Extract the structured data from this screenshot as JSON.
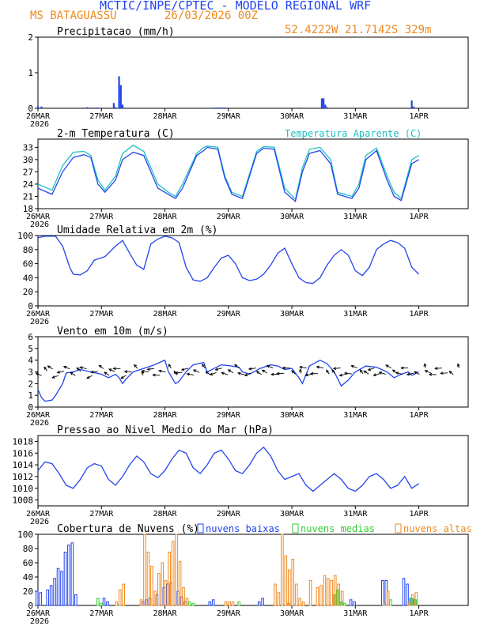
{
  "header": {
    "title": "MCTIC/INPE/CPTEC - MODELO REGIONAL WRF",
    "location": "MS BATAGUASSU",
    "run": "26/03/2026 00Z",
    "coords": "52.4222W 21.7142S 329m"
  },
  "colors": {
    "blue": "#2244ee",
    "cyan": "#20c0c0",
    "orange": "#f08a20",
    "green": "#33cc33",
    "black": "#000000"
  },
  "chart_data": [
    {
      "id": "precip",
      "type": "bar",
      "title": "Precipitacao (mm/h)",
      "x": [
        0,
        1,
        14,
        15,
        16.5,
        17,
        21.5,
        22,
        23,
        23.5,
        24,
        50,
        51,
        51.5,
        52,
        52.5,
        53,
        74,
        80.5,
        81,
        81.5,
        82,
        106,
        106.5
      ],
      "values": [
        0.05,
        0.05,
        0.03,
        0.02,
        0.02,
        0.02,
        0.15,
        0.03,
        0.9,
        0.65,
        0.1,
        0.02,
        0.02,
        0.02,
        0.02,
        0.02,
        0.02,
        0.02,
        0.28,
        0.28,
        0.1,
        0.03,
        0.22,
        0.05
      ],
      "ylim": [
        0,
        2
      ],
      "yticks": [
        0,
        1,
        2
      ]
    },
    {
      "id": "temp",
      "type": "line",
      "title": "2-m Temperatura (C)",
      "legend": "Temperatura Aparente (C)",
      "x": [
        0,
        4,
        7,
        10,
        13,
        15,
        17,
        19,
        22,
        24,
        27,
        30,
        34,
        37,
        39,
        41,
        45,
        47,
        48,
        51,
        53,
        55,
        58,
        62,
        64,
        67,
        70,
        73,
        75,
        77,
        80,
        83,
        85,
        89,
        91,
        93,
        96,
        99,
        101,
        103,
        106,
        108
      ],
      "series": [
        {
          "name": "2-m Temperatura",
          "values": [
            23,
            21.5,
            27,
            30.5,
            31.2,
            30.5,
            24,
            22,
            25,
            30,
            31.8,
            31,
            23,
            21.5,
            20.5,
            23,
            31,
            32.2,
            33,
            32.5,
            25.5,
            21.5,
            20.5,
            31.5,
            32.8,
            32.5,
            22,
            19.8,
            27,
            31.5,
            32.2,
            29,
            21.5,
            20.5,
            23,
            30,
            32.2,
            25,
            21,
            20,
            29,
            30
          ]
        },
        {
          "name": "Temperatura Aparente",
          "values": [
            24,
            22.5,
            28.5,
            31.8,
            32,
            31,
            25,
            22.5,
            26,
            31.5,
            33.5,
            32,
            24,
            22,
            21,
            24,
            31.5,
            33,
            33.3,
            33,
            26,
            22,
            21,
            32,
            33.2,
            33,
            23,
            20.3,
            28,
            32.5,
            33,
            30,
            22,
            21,
            24,
            31,
            32.8,
            26,
            22,
            20.5,
            30,
            31
          ]
        }
      ],
      "ylim": [
        18,
        35
      ],
      "yticks": [
        18,
        21,
        24,
        27,
        30,
        33
      ]
    },
    {
      "id": "rh",
      "type": "line",
      "title": "Umidade Relativa em 2m (%)",
      "x": [
        0,
        2,
        5,
        7,
        9,
        10,
        12,
        14,
        16,
        19,
        22,
        24,
        26,
        28,
        30,
        32,
        34,
        36,
        38,
        40,
        42,
        44,
        46,
        48,
        50,
        52,
        54,
        56,
        58,
        60,
        62,
        64,
        66,
        68,
        70,
        72,
        74,
        76,
        78,
        80,
        82,
        84,
        86,
        88,
        90,
        92,
        94,
        96,
        98,
        100,
        102,
        104,
        106,
        108
      ],
      "series": [
        {
          "name": "Umidade Relativa",
          "values": [
            97,
            99,
            99,
            85,
            55,
            45,
            44,
            50,
            65,
            70,
            85,
            93,
            75,
            58,
            52,
            88,
            95,
            99,
            97,
            90,
            55,
            37,
            35,
            40,
            55,
            68,
            72,
            60,
            40,
            36,
            38,
            45,
            58,
            75,
            82,
            60,
            40,
            33,
            32,
            40,
            58,
            72,
            80,
            72,
            50,
            43,
            55,
            80,
            88,
            93,
            90,
            82,
            55,
            45
          ]
        }
      ],
      "ylim": [
        0,
        100
      ],
      "yticks": [
        0,
        20,
        40,
        60,
        80,
        100
      ]
    },
    {
      "id": "wind",
      "type": "line",
      "title": "Vento em 10m (m/s)",
      "x": [
        0,
        1,
        2,
        4,
        5,
        7,
        8,
        10,
        12,
        15,
        18,
        20,
        22,
        23,
        24,
        25,
        27,
        30,
        33,
        36,
        37,
        39,
        40,
        42,
        44,
        47,
        48,
        50,
        52,
        55,
        57,
        58,
        60,
        63,
        66,
        68,
        70,
        72,
        74,
        75,
        77,
        80,
        82,
        84,
        86,
        88,
        90,
        93,
        96,
        99,
        101,
        103,
        105,
        106,
        108
      ],
      "series": [
        {
          "name": "Vento",
          "values": [
            1.5,
            0.8,
            0.5,
            0.6,
            1.0,
            2.0,
            2.9,
            3.0,
            3.2,
            3.0,
            2.8,
            2.5,
            2.8,
            2.5,
            2.0,
            2.4,
            3.0,
            3.3,
            3.6,
            4.0,
            3.0,
            2.0,
            2.2,
            3.0,
            3.6,
            3.8,
            3.0,
            3.3,
            3.6,
            3.5,
            3.4,
            3.0,
            2.8,
            3.3,
            3.6,
            3.5,
            3.2,
            3.3,
            2.5,
            2.0,
            3.5,
            4.0,
            3.7,
            3.0,
            1.8,
            2.3,
            3.0,
            3.5,
            3.4,
            3.0,
            2.5,
            2.8,
            3.0,
            2.7,
            3.0
          ]
        }
      ],
      "ylim": [
        0,
        6
      ],
      "yticks": [
        0,
        1,
        2,
        3,
        4,
        5,
        6
      ]
    },
    {
      "id": "press",
      "type": "line",
      "title": "Pressao ao Nivel Medio do Mar (hPa)",
      "x": [
        0,
        2,
        4,
        6,
        8,
        10,
        12,
        14,
        16,
        18,
        20,
        22,
        24,
        26,
        28,
        30,
        32,
        34,
        36,
        38,
        40,
        42,
        44,
        46,
        48,
        50,
        52,
        54,
        56,
        58,
        60,
        62,
        64,
        66,
        68,
        70,
        72,
        74,
        76,
        78,
        80,
        82,
        84,
        86,
        88,
        90,
        92,
        94,
        96,
        98,
        100,
        102,
        104,
        106,
        108
      ],
      "series": [
        {
          "name": "Pressao",
          "values": [
            1013,
            1014.5,
            1014.2,
            1012.5,
            1010.5,
            1010,
            1011.5,
            1013.5,
            1014.2,
            1013.8,
            1011.5,
            1010.5,
            1012,
            1014,
            1015.5,
            1014.5,
            1012.5,
            1011.8,
            1013,
            1015,
            1016.5,
            1016,
            1013.5,
            1012.5,
            1014,
            1016,
            1016.5,
            1015,
            1013,
            1012.5,
            1014,
            1016,
            1017,
            1015.5,
            1013,
            1011.5,
            1012,
            1012.5,
            1010.5,
            1009.5,
            1010.5,
            1011.5,
            1012.5,
            1011.5,
            1010,
            1009.5,
            1010.5,
            1012,
            1012.5,
            1011.5,
            1010,
            1010.5,
            1012,
            1010,
            1010.8
          ]
        }
      ],
      "ylim": [
        1007,
        1019
      ],
      "yticks": [
        1008,
        1010,
        1012,
        1014,
        1016,
        1018
      ]
    },
    {
      "id": "cloud",
      "type": "bar",
      "title": "Cobertura de Nuvens (%)",
      "legend": [
        "nuvens baixas",
        "nuvens medias",
        "nuvens altas"
      ],
      "series": [
        {
          "name": "nuvens baixas",
          "x": [
            0,
            1,
            3,
            4,
            5,
            6,
            7,
            8,
            9,
            10,
            11,
            19,
            20,
            30,
            31,
            32,
            34,
            36,
            37,
            38,
            40,
            41,
            42,
            49,
            50,
            63,
            64,
            89,
            90,
            98,
            99,
            104,
            105,
            106,
            107
          ],
          "values": [
            20,
            18,
            22,
            28,
            38,
            52,
            48,
            75,
            85,
            88,
            15,
            10,
            5,
            5,
            8,
            10,
            15,
            25,
            30,
            32,
            20,
            12,
            5,
            5,
            8,
            5,
            10,
            8,
            5,
            35,
            35,
            38,
            30,
            10,
            8
          ]
        },
        {
          "name": "nuvens medias",
          "x": [
            17,
            18,
            43,
            44,
            57,
            71,
            84,
            85,
            86,
            87,
            100,
            106,
            107
          ],
          "values": [
            10,
            3,
            5,
            3,
            5,
            3,
            15,
            22,
            5,
            3,
            8,
            10,
            8
          ]
        },
        {
          "name": "nuvens altas",
          "x": [
            22,
            23,
            24,
            29,
            30,
            31,
            32,
            33,
            34,
            35,
            36,
            37,
            38,
            39,
            40,
            41,
            42,
            53,
            54,
            55,
            67,
            68,
            69,
            70,
            71,
            72,
            73,
            74,
            75,
            77,
            79,
            80,
            81,
            82,
            83,
            84,
            85,
            86,
            98,
            99,
            105,
            106,
            107
          ],
          "values": [
            5,
            22,
            30,
            8,
            100,
            75,
            55,
            20,
            45,
            60,
            35,
            75,
            90,
            100,
            62,
            25,
            10,
            5,
            5,
            5,
            30,
            18,
            100,
            70,
            50,
            65,
            30,
            10,
            5,
            35,
            25,
            28,
            42,
            38,
            35,
            42,
            30,
            20,
            5,
            20,
            5,
            15,
            18
          ]
        }
      ],
      "ylim": [
        0,
        100
      ],
      "yticks": [
        0,
        20,
        40,
        60,
        80,
        100
      ]
    }
  ],
  "x_axis": {
    "labels": [
      "26MAR",
      "27MAR",
      "28MAR",
      "29MAR",
      "30MAR",
      "31MAR",
      "1APR"
    ],
    "label_hours": [
      0,
      18,
      36,
      54,
      72,
      90,
      108
    ],
    "year": "2026",
    "hours_total": 122
  }
}
